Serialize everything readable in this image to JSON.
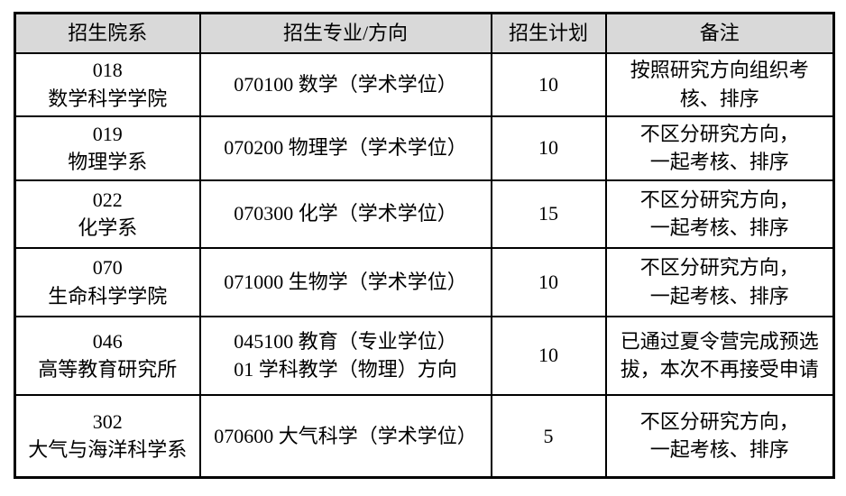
{
  "page": {
    "background_color": "#ffffff"
  },
  "table": {
    "header_bg": "#d9d9d9",
    "border_color": "#000000",
    "columns": [
      "招生院系",
      "招生专业/方向",
      "招生计划",
      "备注"
    ],
    "rows": [
      {
        "dept": "018\n数学科学学院",
        "major": "070100 数学（学术学位）",
        "plan": "10",
        "remark": "按照研究方向组织考\n核、排序"
      },
      {
        "dept": "019\n物理学系",
        "major": "070200 物理学（学术学位）",
        "plan": "10",
        "remark": "不区分研究方向，\n一起考核、排序"
      },
      {
        "dept": "022\n化学系",
        "major": "070300 化学（学术学位）",
        "plan": "15",
        "remark": "不区分研究方向，\n一起考核、排序"
      },
      {
        "dept": "070\n生命科学学院",
        "major": "071000 生物学（学术学位）",
        "plan": "10",
        "remark": "不区分研究方向，\n一起考核、排序"
      },
      {
        "dept": "046\n高等教育研究所",
        "major": "045100 教育（专业学位）\n01 学科教学（物理）方向",
        "plan": "10",
        "remark": "已通过夏令营完成预选\n拔，本次不再接受申请"
      },
      {
        "dept": "302\n大气与海洋科学系",
        "major": "070600 大气科学（学术学位）",
        "plan": "5",
        "remark": "不区分研究方向，\n一起考核、排序"
      }
    ]
  }
}
